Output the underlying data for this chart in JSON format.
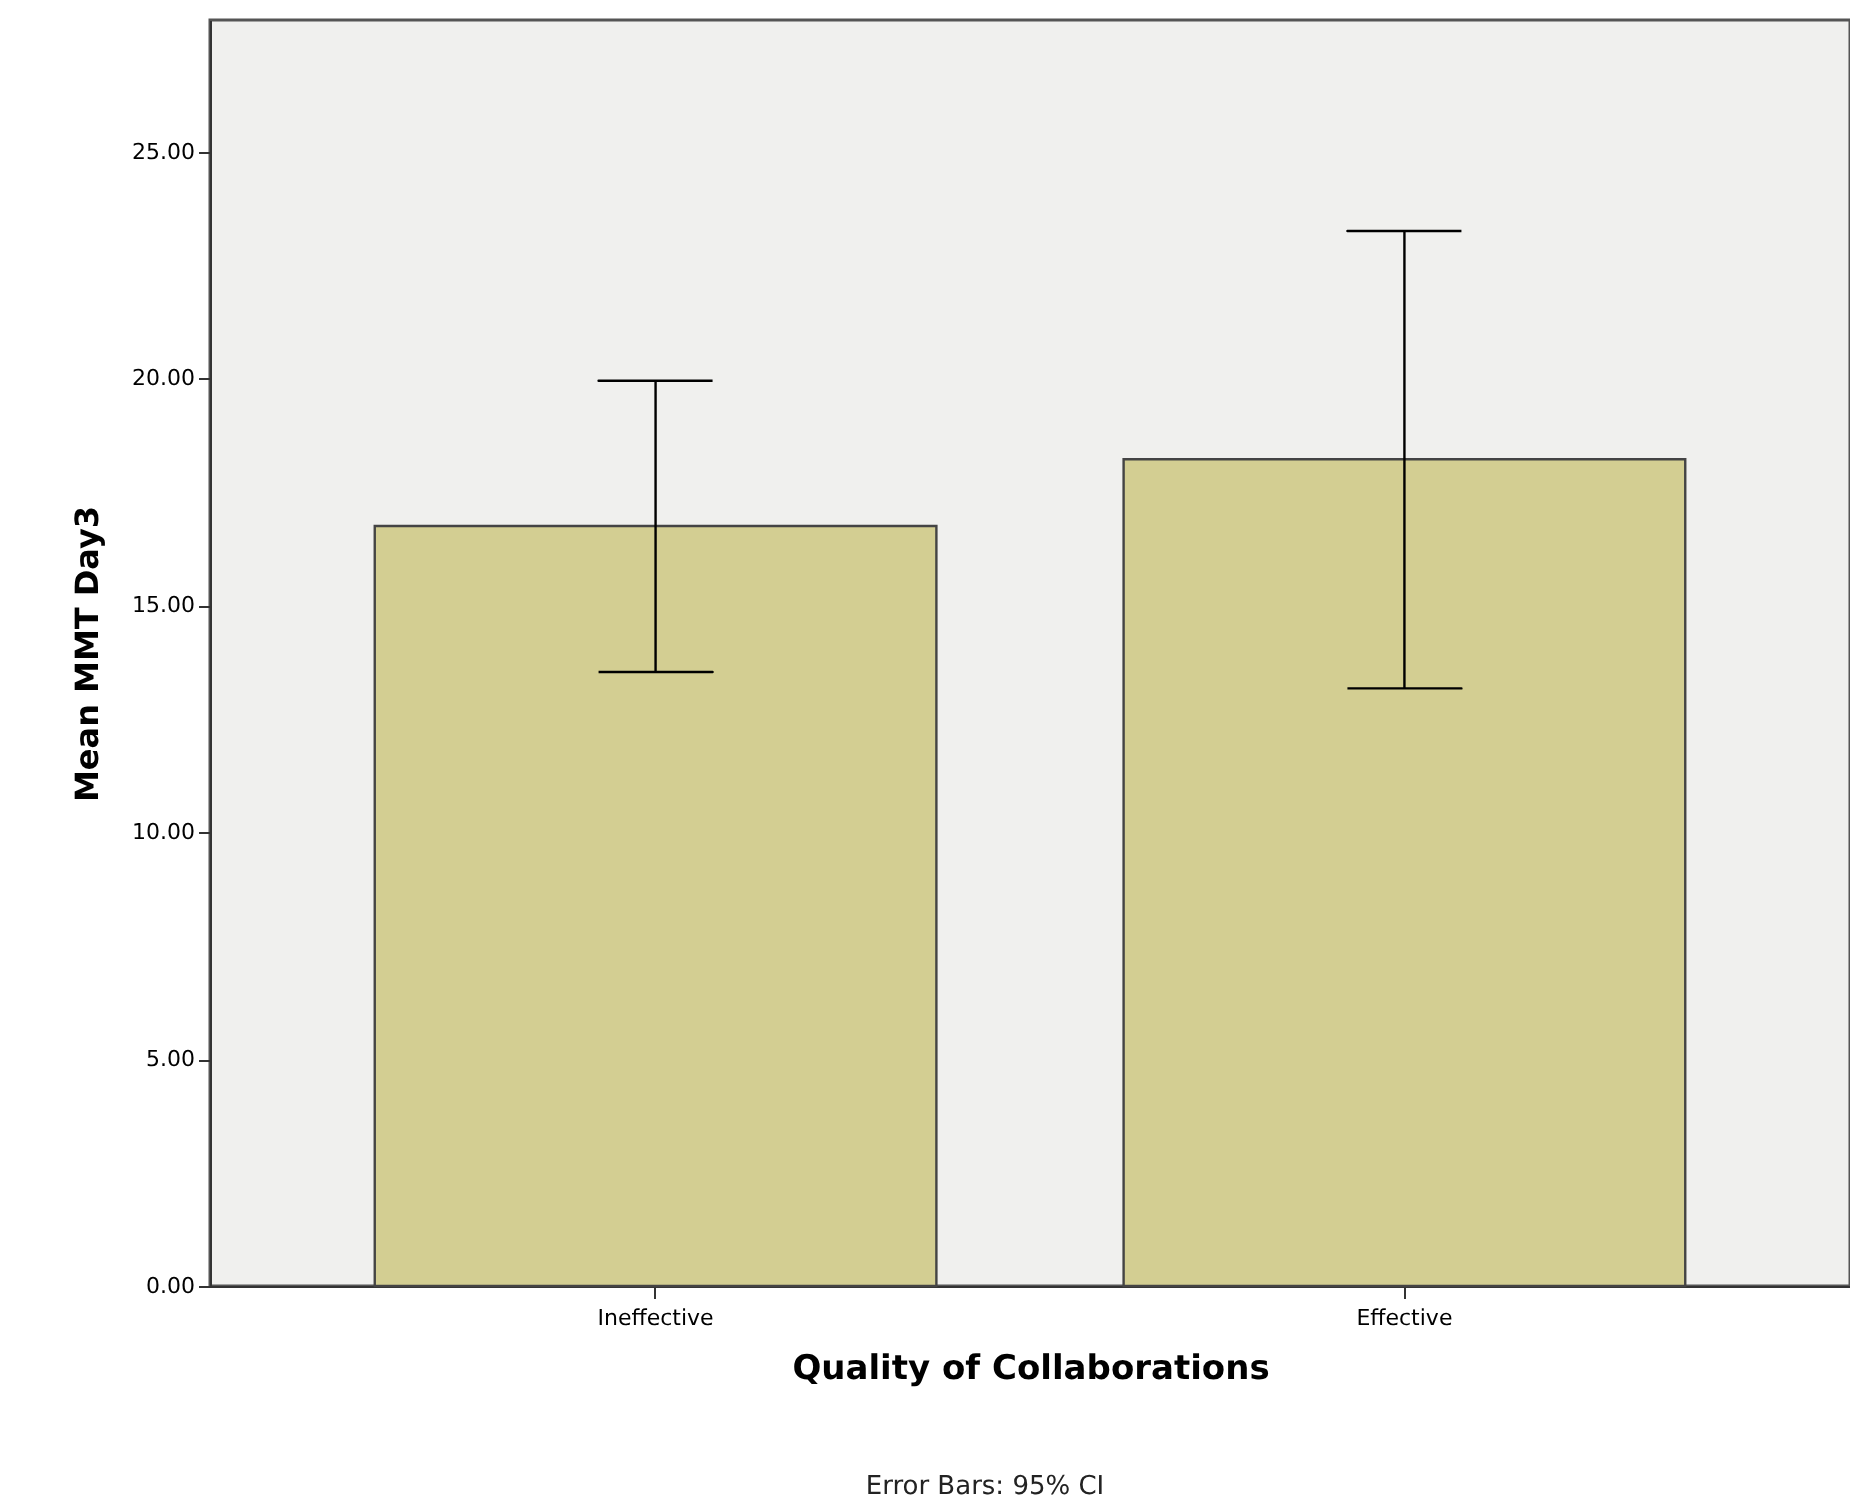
{
  "chart_data": {
    "type": "bar",
    "categories": [
      "Ineffective",
      "Effective"
    ],
    "values": [
      16.75,
      18.22
    ],
    "errors": [
      [
        13.53,
        19.95
      ],
      [
        13.17,
        23.25
      ]
    ],
    "color": "#d3ce92",
    "xlabel": "Quality of Collaborations",
    "ylabel": "Mean MMT Day3",
    "ylim": [
      0,
      27.9
    ],
    "yticks": [
      {
        "value": 0,
        "label": "0.00"
      },
      {
        "value": 5,
        "label": "5.00"
      },
      {
        "value": 10,
        "label": "10.00"
      },
      {
        "value": 15,
        "label": "15.00"
      },
      {
        "value": 20,
        "label": "20.00"
      },
      {
        "value": 25,
        "label": "25.00"
      }
    ],
    "grid": false,
    "annotations": [
      "Error Bars: 95% CI"
    ]
  }
}
